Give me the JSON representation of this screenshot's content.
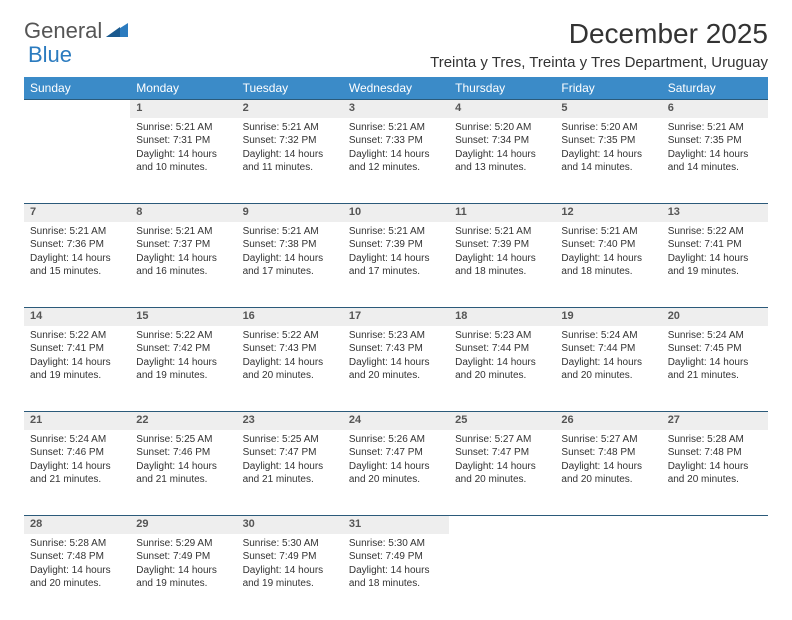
{
  "logo": {
    "text1": "General",
    "text2": "Blue"
  },
  "title": "December 2025",
  "location": "Treinta y Tres, Treinta y Tres Department, Uruguay",
  "columns": [
    "Sunday",
    "Monday",
    "Tuesday",
    "Wednesday",
    "Thursday",
    "Friday",
    "Saturday"
  ],
  "colors": {
    "header_bg": "#3b8bc8",
    "header_fg": "#ffffff",
    "daynum_bg": "#eeeeee",
    "rule": "#2b5a7a"
  },
  "weeks": [
    [
      null,
      {
        "n": "1",
        "sr": "Sunrise: 5:21 AM",
        "ss": "Sunset: 7:31 PM",
        "dl": "Daylight: 14 hours and 10 minutes."
      },
      {
        "n": "2",
        "sr": "Sunrise: 5:21 AM",
        "ss": "Sunset: 7:32 PM",
        "dl": "Daylight: 14 hours and 11 minutes."
      },
      {
        "n": "3",
        "sr": "Sunrise: 5:21 AM",
        "ss": "Sunset: 7:33 PM",
        "dl": "Daylight: 14 hours and 12 minutes."
      },
      {
        "n": "4",
        "sr": "Sunrise: 5:20 AM",
        "ss": "Sunset: 7:34 PM",
        "dl": "Daylight: 14 hours and 13 minutes."
      },
      {
        "n": "5",
        "sr": "Sunrise: 5:20 AM",
        "ss": "Sunset: 7:35 PM",
        "dl": "Daylight: 14 hours and 14 minutes."
      },
      {
        "n": "6",
        "sr": "Sunrise: 5:21 AM",
        "ss": "Sunset: 7:35 PM",
        "dl": "Daylight: 14 hours and 14 minutes."
      }
    ],
    [
      {
        "n": "7",
        "sr": "Sunrise: 5:21 AM",
        "ss": "Sunset: 7:36 PM",
        "dl": "Daylight: 14 hours and 15 minutes."
      },
      {
        "n": "8",
        "sr": "Sunrise: 5:21 AM",
        "ss": "Sunset: 7:37 PM",
        "dl": "Daylight: 14 hours and 16 minutes."
      },
      {
        "n": "9",
        "sr": "Sunrise: 5:21 AM",
        "ss": "Sunset: 7:38 PM",
        "dl": "Daylight: 14 hours and 17 minutes."
      },
      {
        "n": "10",
        "sr": "Sunrise: 5:21 AM",
        "ss": "Sunset: 7:39 PM",
        "dl": "Daylight: 14 hours and 17 minutes."
      },
      {
        "n": "11",
        "sr": "Sunrise: 5:21 AM",
        "ss": "Sunset: 7:39 PM",
        "dl": "Daylight: 14 hours and 18 minutes."
      },
      {
        "n": "12",
        "sr": "Sunrise: 5:21 AM",
        "ss": "Sunset: 7:40 PM",
        "dl": "Daylight: 14 hours and 18 minutes."
      },
      {
        "n": "13",
        "sr": "Sunrise: 5:22 AM",
        "ss": "Sunset: 7:41 PM",
        "dl": "Daylight: 14 hours and 19 minutes."
      }
    ],
    [
      {
        "n": "14",
        "sr": "Sunrise: 5:22 AM",
        "ss": "Sunset: 7:41 PM",
        "dl": "Daylight: 14 hours and 19 minutes."
      },
      {
        "n": "15",
        "sr": "Sunrise: 5:22 AM",
        "ss": "Sunset: 7:42 PM",
        "dl": "Daylight: 14 hours and 19 minutes."
      },
      {
        "n": "16",
        "sr": "Sunrise: 5:22 AM",
        "ss": "Sunset: 7:43 PM",
        "dl": "Daylight: 14 hours and 20 minutes."
      },
      {
        "n": "17",
        "sr": "Sunrise: 5:23 AM",
        "ss": "Sunset: 7:43 PM",
        "dl": "Daylight: 14 hours and 20 minutes."
      },
      {
        "n": "18",
        "sr": "Sunrise: 5:23 AM",
        "ss": "Sunset: 7:44 PM",
        "dl": "Daylight: 14 hours and 20 minutes."
      },
      {
        "n": "19",
        "sr": "Sunrise: 5:24 AM",
        "ss": "Sunset: 7:44 PM",
        "dl": "Daylight: 14 hours and 20 minutes."
      },
      {
        "n": "20",
        "sr": "Sunrise: 5:24 AM",
        "ss": "Sunset: 7:45 PM",
        "dl": "Daylight: 14 hours and 21 minutes."
      }
    ],
    [
      {
        "n": "21",
        "sr": "Sunrise: 5:24 AM",
        "ss": "Sunset: 7:46 PM",
        "dl": "Daylight: 14 hours and 21 minutes."
      },
      {
        "n": "22",
        "sr": "Sunrise: 5:25 AM",
        "ss": "Sunset: 7:46 PM",
        "dl": "Daylight: 14 hours and 21 minutes."
      },
      {
        "n": "23",
        "sr": "Sunrise: 5:25 AM",
        "ss": "Sunset: 7:47 PM",
        "dl": "Daylight: 14 hours and 21 minutes."
      },
      {
        "n": "24",
        "sr": "Sunrise: 5:26 AM",
        "ss": "Sunset: 7:47 PM",
        "dl": "Daylight: 14 hours and 20 minutes."
      },
      {
        "n": "25",
        "sr": "Sunrise: 5:27 AM",
        "ss": "Sunset: 7:47 PM",
        "dl": "Daylight: 14 hours and 20 minutes."
      },
      {
        "n": "26",
        "sr": "Sunrise: 5:27 AM",
        "ss": "Sunset: 7:48 PM",
        "dl": "Daylight: 14 hours and 20 minutes."
      },
      {
        "n": "27",
        "sr": "Sunrise: 5:28 AM",
        "ss": "Sunset: 7:48 PM",
        "dl": "Daylight: 14 hours and 20 minutes."
      }
    ],
    [
      {
        "n": "28",
        "sr": "Sunrise: 5:28 AM",
        "ss": "Sunset: 7:48 PM",
        "dl": "Daylight: 14 hours and 20 minutes."
      },
      {
        "n": "29",
        "sr": "Sunrise: 5:29 AM",
        "ss": "Sunset: 7:49 PM",
        "dl": "Daylight: 14 hours and 19 minutes."
      },
      {
        "n": "30",
        "sr": "Sunrise: 5:30 AM",
        "ss": "Sunset: 7:49 PM",
        "dl": "Daylight: 14 hours and 19 minutes."
      },
      {
        "n": "31",
        "sr": "Sunrise: 5:30 AM",
        "ss": "Sunset: 7:49 PM",
        "dl": "Daylight: 14 hours and 18 minutes."
      },
      null,
      null,
      null
    ]
  ]
}
